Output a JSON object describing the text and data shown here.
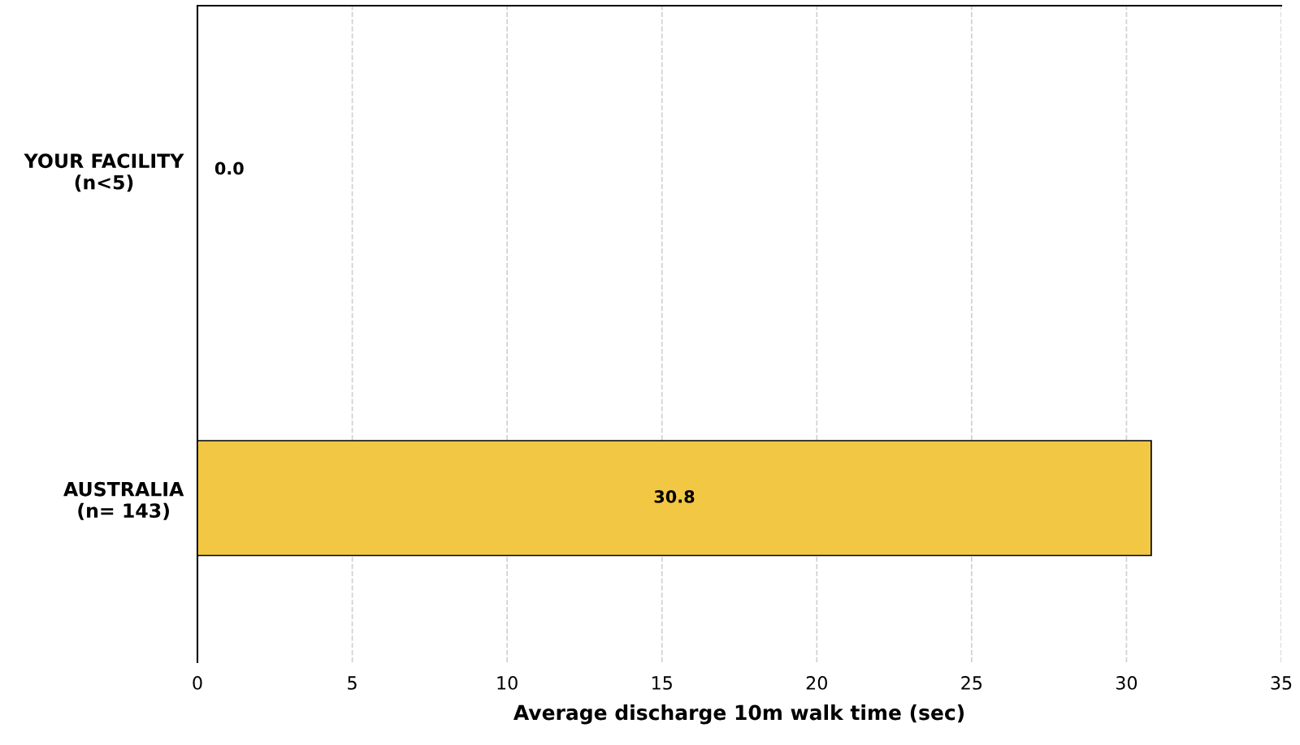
{
  "chart_data": {
    "type": "bar",
    "orientation": "horizontal",
    "categories": [
      "YOUR FACILITY\n(n<5)",
      "AUSTRALIA\n(n= 143)"
    ],
    "values": [
      0.0,
      30.8
    ],
    "value_labels": [
      "0.0",
      "30.8"
    ],
    "color": "#f2c744",
    "xlabel": "Average discharge 10m walk time (sec)",
    "xlim": [
      0,
      35
    ],
    "xticks": [
      0,
      5,
      10,
      15,
      20,
      25,
      30,
      35
    ],
    "grid": "x"
  }
}
